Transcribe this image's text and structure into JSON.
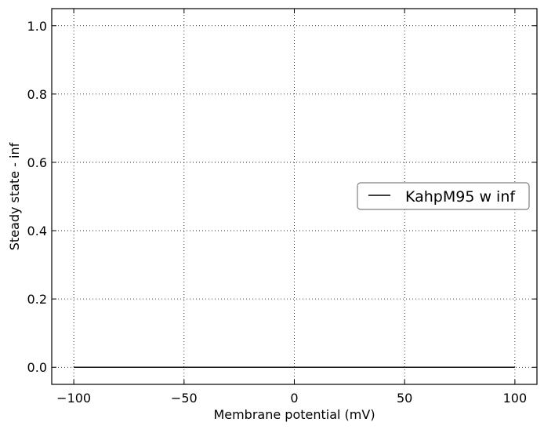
{
  "chart_data": {
    "type": "line",
    "title": "",
    "xlabel": "Membrane potential (mV)",
    "ylabel": "Steady state - inf",
    "xlim": [
      -110,
      110
    ],
    "ylim": [
      -0.05,
      1.05
    ],
    "xticks": [
      -100,
      -50,
      0,
      50,
      100
    ],
    "xtick_labels": [
      "−100",
      "−50",
      "0",
      "50",
      "100"
    ],
    "yticks": [
      0.0,
      0.2,
      0.4,
      0.6,
      0.8,
      1.0
    ],
    "ytick_labels": [
      "0.0",
      "0.2",
      "0.4",
      "0.6",
      "0.8",
      "1.0"
    ],
    "grid": true,
    "legend_position": "center-right",
    "series": [
      {
        "name": "KahpM95 w inf",
        "color": "#000000",
        "x": [
          -100,
          -50,
          0,
          50,
          100
        ],
        "y": [
          0,
          0,
          0,
          0,
          0
        ]
      }
    ]
  }
}
